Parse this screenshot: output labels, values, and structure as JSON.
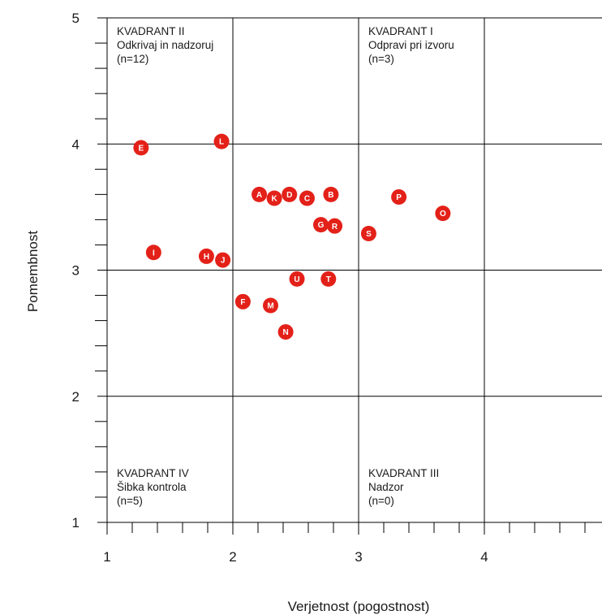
{
  "chart_data": {
    "type": "scatter",
    "title": "",
    "xlabel": "Verjetnost (pogostnost)",
    "ylabel": "Pomembnost",
    "xlim": [
      1,
      4.9
    ],
    "ylim": [
      1,
      5
    ],
    "x_ticks": [
      "1",
      "2",
      "3",
      "4"
    ],
    "y_ticks": [
      "1",
      "2",
      "3",
      "4",
      "5"
    ],
    "grid": true,
    "point_color": "#e32119",
    "gridline_color": "#000000",
    "points": [
      {
        "label": "A",
        "x": 2.21,
        "y": 3.6
      },
      {
        "label": "B",
        "x": 2.78,
        "y": 3.6
      },
      {
        "label": "C",
        "x": 2.59,
        "y": 3.57
      },
      {
        "label": "D",
        "x": 2.45,
        "y": 3.6
      },
      {
        "label": "E",
        "x": 1.27,
        "y": 3.97
      },
      {
        "label": "F",
        "x": 2.08,
        "y": 2.75
      },
      {
        "label": "G",
        "x": 2.7,
        "y": 3.36
      },
      {
        "label": "H",
        "x": 1.79,
        "y": 3.11
      },
      {
        "label": "I",
        "x": 1.37,
        "y": 3.14
      },
      {
        "label": "J",
        "x": 1.92,
        "y": 3.08
      },
      {
        "label": "K",
        "x": 2.33,
        "y": 3.57
      },
      {
        "label": "L",
        "x": 1.91,
        "y": 4.02
      },
      {
        "label": "M",
        "x": 2.3,
        "y": 2.72
      },
      {
        "label": "N",
        "x": 2.42,
        "y": 2.51
      },
      {
        "label": "O",
        "x": 3.67,
        "y": 3.45
      },
      {
        "label": "P",
        "x": 3.32,
        "y": 3.58
      },
      {
        "label": "R",
        "x": 2.81,
        "y": 3.35
      },
      {
        "label": "S",
        "x": 3.08,
        "y": 3.29
      },
      {
        "label": "T",
        "x": 2.76,
        "y": 2.93
      },
      {
        "label": "U",
        "x": 2.51,
        "y": 2.93
      }
    ],
    "quadrants": [
      {
        "name": "KVADRANT II",
        "description": "Odkrivaj in nadzoruj",
        "count": "(n=12)",
        "anchor": [
          1,
          5
        ]
      },
      {
        "name": "KVADRANT I",
        "description": "Odpravi pri izvoru",
        "count": "(n=3)",
        "anchor": [
          3,
          5
        ]
      },
      {
        "name": "KVADRANT IV",
        "description": "Šibka kontrola",
        "count": "(n=5)",
        "anchor": [
          1,
          1
        ]
      },
      {
        "name": "KVADRANT III",
        "description": "Nadzor",
        "count": "(n=0)",
        "anchor": [
          3,
          1
        ]
      }
    ]
  }
}
